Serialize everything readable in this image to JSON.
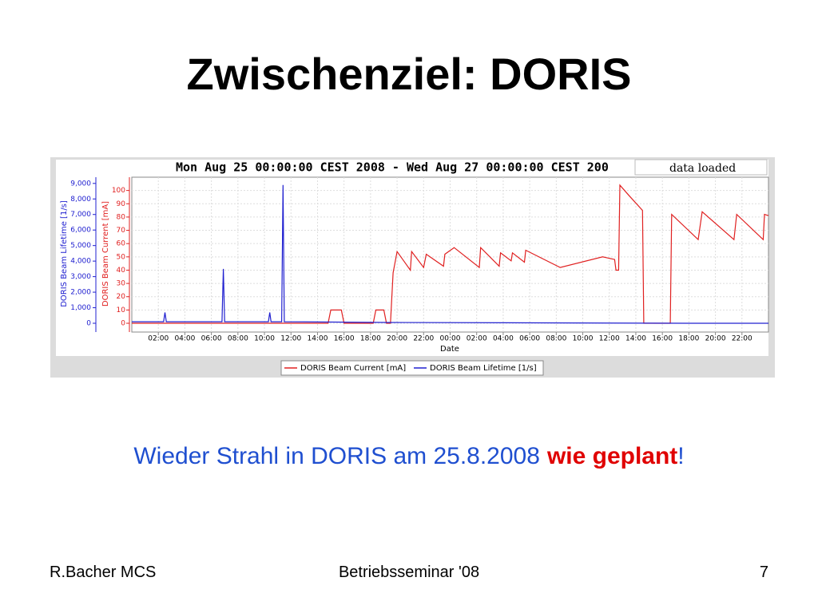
{
  "slide": {
    "title": "Zwischenziel: DORIS",
    "caption": {
      "text": "Wieder Strahl in DORIS am 25.8.2008",
      "emphasis": "wie geplant",
      "end": "!"
    },
    "footer": {
      "left": "R.Bacher MCS",
      "center": "Betriebsseminar '08",
      "page": "7"
    },
    "status": "data loaded"
  },
  "chart_data": {
    "type": "line",
    "title": "Mon Aug 25 00:00:00 CEST 2008 - Wed Aug 27 00:00:00 CEST 200",
    "x_label": "Date",
    "y_label": "DORIS Beam Current [mA]",
    "y2_label": "DORIS Beam Lifetime [1/s]",
    "xlim": [
      0,
      48
    ],
    "xticks": [
      {
        "value": 2,
        "label": "02:00"
      },
      {
        "value": 4,
        "label": "04:00"
      },
      {
        "value": 6,
        "label": "06:00"
      },
      {
        "value": 8,
        "label": "08:00"
      },
      {
        "value": 10,
        "label": "10:00"
      },
      {
        "value": 12,
        "label": "12:00"
      },
      {
        "value": 14,
        "label": "14:00"
      },
      {
        "value": 16,
        "label": "16:00"
      },
      {
        "value": 18,
        "label": "18:00"
      },
      {
        "value": 20,
        "label": "20:00"
      },
      {
        "value": 22,
        "label": "22:00"
      },
      {
        "value": 24,
        "label": "00:00"
      },
      {
        "value": 26,
        "label": "02:00"
      },
      {
        "value": 28,
        "label": "04:00"
      },
      {
        "value": 30,
        "label": "06:00"
      },
      {
        "value": 32,
        "label": "08:00"
      },
      {
        "value": 34,
        "label": "10:00"
      },
      {
        "value": 36,
        "label": "12:00"
      },
      {
        "value": 38,
        "label": "14:00"
      },
      {
        "value": 40,
        "label": "16:00"
      },
      {
        "value": 42,
        "label": "18:00"
      },
      {
        "value": 44,
        "label": "20:00"
      },
      {
        "value": 46,
        "label": "22:00"
      }
    ],
    "ylim": [
      0,
      110
    ],
    "yticks": [
      0,
      10,
      20,
      30,
      40,
      50,
      60,
      70,
      80,
      90,
      100
    ],
    "y2lim": [
      0,
      9400
    ],
    "y2ticks": [
      0,
      {
        "value": 1000,
        "label": "1,000"
      },
      {
        "value": 2000,
        "label": "2,000"
      },
      {
        "value": 3000,
        "label": "3,000"
      },
      {
        "value": 4000,
        "label": "4,000"
      },
      {
        "value": 5000,
        "label": "5,000"
      },
      {
        "value": 6000,
        "label": "6,000"
      },
      {
        "value": 7000,
        "label": "7,000"
      },
      {
        "value": 8000,
        "label": "8,000"
      },
      {
        "value": 9000,
        "label": "9,000"
      }
    ],
    "grid": true,
    "series": [
      {
        "name": "DORIS Beam Current [mA]",
        "color": "#e02020",
        "x": [
          0,
          14.8,
          15.0,
          15.8,
          16.0,
          18.2,
          18.4,
          19.0,
          19.2,
          19.5,
          19.7,
          20.0,
          21.0,
          21.1,
          22.0,
          22.2,
          23.5,
          23.6,
          24.3,
          26.2,
          26.3,
          27.7,
          27.8,
          28.6,
          28.7,
          29.6,
          29.7,
          32.3,
          35.5,
          36.4,
          36.5,
          36.7,
          36.8,
          37.5,
          38.5,
          38.6,
          40.6,
          40.7,
          42.7,
          43.0,
          45.4,
          45.6,
          47.6,
          47.7,
          48
        ],
        "values": [
          0,
          0,
          10,
          10,
          0,
          0,
          10,
          10,
          0,
          0,
          38,
          54,
          40,
          54,
          42,
          52,
          43,
          52,
          57,
          42,
          57,
          43,
          53,
          47,
          53,
          46,
          55,
          42,
          50,
          48,
          40,
          40,
          104,
          96,
          85,
          0,
          0,
          82,
          63,
          84,
          63,
          82,
          63,
          82,
          81
        ]
      },
      {
        "name": "DORIS Beam Lifetime [1/s]",
        "color": "#2020d0",
        "axis": "y2",
        "x": [
          0,
          2.4,
          2.5,
          2.6,
          6.8,
          6.9,
          7.0,
          10.3,
          10.4,
          10.5,
          11.3,
          11.4,
          11.5,
          19.2,
          42,
          48
        ],
        "values": [
          100,
          100,
          700,
          100,
          100,
          3500,
          100,
          100,
          700,
          100,
          100,
          8900,
          100,
          50,
          0,
          0
        ]
      }
    ]
  }
}
